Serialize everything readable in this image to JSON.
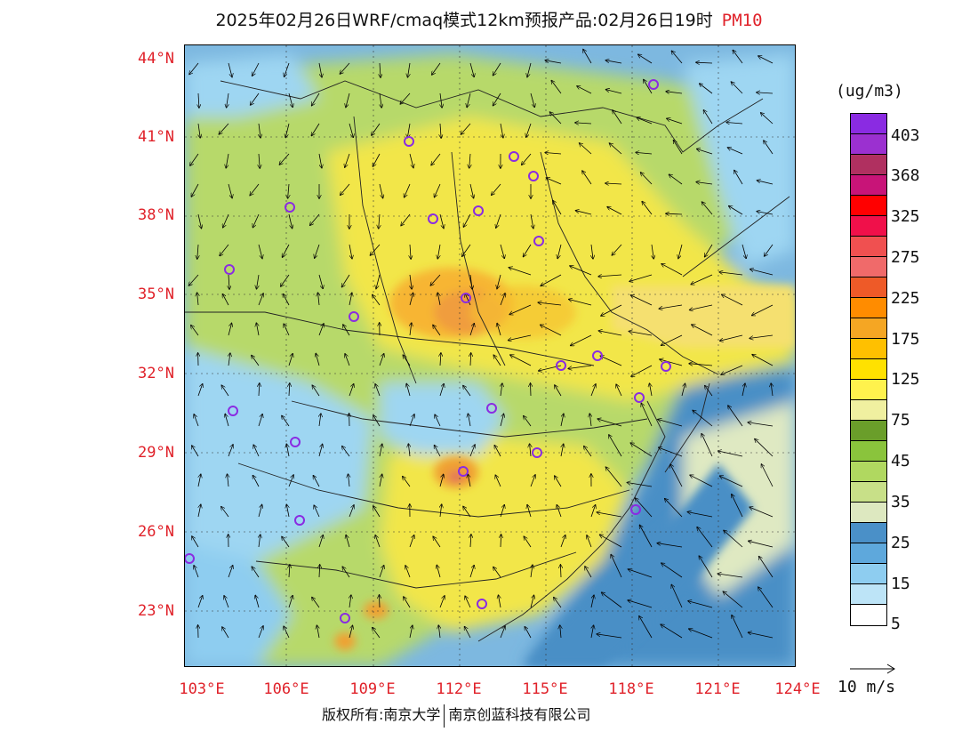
{
  "title": "2025年02月26日WRF/cmaq模式12km预报产品:02月26日19时",
  "pollutant": "PM10",
  "unit": "(ug/m3)",
  "lat_labels": [
    "44°N",
    "41°N",
    "38°N",
    "35°N",
    "32°N",
    "29°N",
    "26°N",
    "23°N"
  ],
  "lon_labels": [
    "103°E",
    "106°E",
    "109°E",
    "112°E",
    "115°E",
    "118°E",
    "121°E",
    "124°E"
  ],
  "colorbar": {
    "colors": [
      "#8a2be2",
      "#9b30d0",
      "#b03060",
      "#c81478",
      "#ff0000",
      "#f0104a",
      "#f05050",
      "#f06a6a",
      "#ee5a28",
      "#ff8c00",
      "#f5a623",
      "#ffc000",
      "#ffe100",
      "#fff24d",
      "#f0f0a0",
      "#6a9e2a",
      "#8ac43c",
      "#b0d860",
      "#c8e088",
      "#dde8c0",
      "#4a90c8",
      "#5ea8dc",
      "#8ecdf0",
      "#bde4f7",
      "#ffffff"
    ],
    "labels": [
      "403",
      "368",
      "325",
      "275",
      "225",
      "175",
      "125",
      "75",
      "45",
      "35",
      "25",
      "15",
      "5"
    ]
  },
  "wind_reference": "10 m/s",
  "footer": {
    "left": "版权所有:南京大学",
    "right": "南京创蓝科技有限公司"
  }
}
